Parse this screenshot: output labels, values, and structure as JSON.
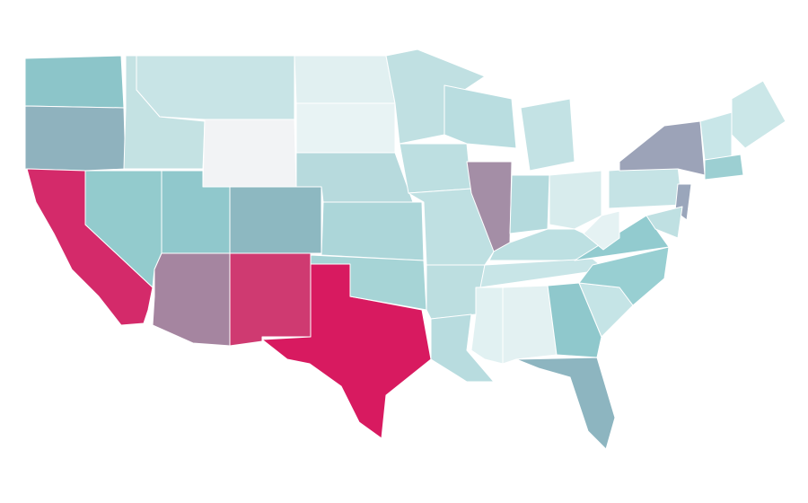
{
  "map": {
    "region_colors": [
      "#8cc5c9",
      "#8fb2be",
      "#d42a6a",
      "#93cbcd",
      "#c4e2e3",
      "#c8e4e6",
      "#f2f3f5",
      "#90c8cc",
      "#8db8c1",
      "#a585a0",
      "#cf3a71",
      "#d81a60",
      "#e1f0f1",
      "#e8f3f4",
      "#b7dadd",
      "#acd6d9",
      "#a6d4d6",
      "#c0e0e2",
      "#bddfe1",
      "#bfe0e2",
      "#bcdee0",
      "#b8dcdf",
      "#b9dde0",
      "#a48ea6",
      "#c3e2e4",
      "#b4dadd",
      "#d8eced",
      "#bde0e2",
      "#c8e5e7",
      "#e1f1f2",
      "#e3f1f2",
      "#8fc8cc",
      "#8db5c0",
      "#c5e4e6",
      "#98cfd2",
      "#92cbcf",
      "#e5f2f3",
      "#c5e3e5",
      "#9ca3b8",
      "#9aa6bb",
      "#cbe7e8",
      "#c8e6e8",
      "#9ccfd2",
      "#bfe0e2"
    ]
  }
}
